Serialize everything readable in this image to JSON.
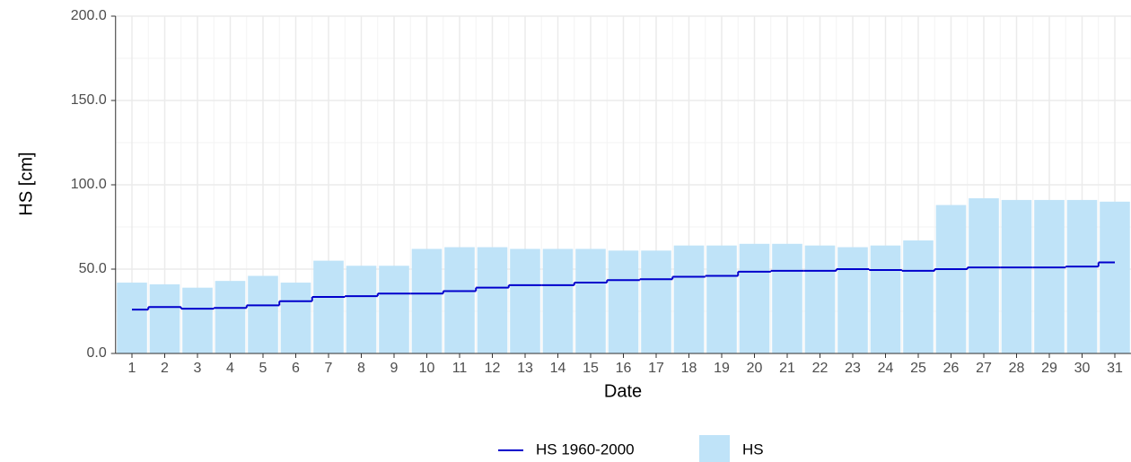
{
  "chart_data": {
    "type": "bar",
    "xlabel": "Date",
    "ylabel": "HS [cm]",
    "categories": [
      "1",
      "2",
      "3",
      "4",
      "5",
      "6",
      "7",
      "8",
      "9",
      "10",
      "11",
      "12",
      "13",
      "14",
      "15",
      "16",
      "17",
      "18",
      "19",
      "20",
      "21",
      "22",
      "23",
      "24",
      "25",
      "26",
      "27",
      "28",
      "29",
      "30",
      "31"
    ],
    "series": [
      {
        "name": "HS 1960-2000",
        "type": "line",
        "color": "#0000cc",
        "values": [
          26,
          27.5,
          26.5,
          27,
          28.5,
          31,
          33.5,
          34,
          35.5,
          35.5,
          37,
          39,
          40.5,
          40.5,
          42,
          43.5,
          44,
          45.5,
          46,
          48.5,
          49,
          49,
          50,
          49.5,
          49,
          50,
          51,
          51,
          51,
          51.5,
          54
        ]
      },
      {
        "name": "HS",
        "type": "bar",
        "color": "#bfe3f8",
        "values": [
          42,
          41,
          39,
          43,
          46,
          42,
          55,
          52,
          52,
          62,
          63,
          63,
          62,
          62,
          62,
          61,
          61,
          64,
          64,
          65,
          65,
          64,
          63,
          64,
          67,
          88,
          92,
          91,
          91,
          91,
          90
        ]
      }
    ],
    "ylim": [
      0,
      200
    ],
    "yticks": [
      {
        "value": 0,
        "label": "0.0"
      },
      {
        "value": 50,
        "label": "50.0"
      },
      {
        "value": 100,
        "label": "100.0"
      },
      {
        "value": 150,
        "label": "150.0"
      },
      {
        "value": 200,
        "label": "200.0"
      }
    ],
    "y_minor_ticks": [
      25,
      75,
      125,
      175
    ],
    "grid": true,
    "legend": "bottom"
  }
}
